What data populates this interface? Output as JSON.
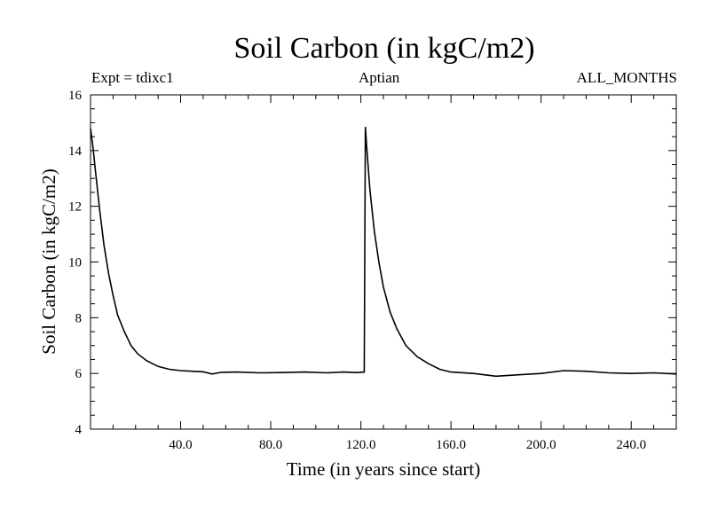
{
  "header": {
    "title": "Soil Carbon (in kgC/m2)",
    "left_label": "Expt = tdixc1",
    "center_label": "Aptian",
    "right_label": "ALL_MONTHS"
  },
  "chart_data": {
    "type": "line",
    "title": "Soil Carbon (in kgC/m2)",
    "xlabel": "Time (in years since start)",
    "ylabel": "Soil Carbon (in kgC/m2)",
    "xlim": [
      0,
      260
    ],
    "ylim": [
      4,
      16
    ],
    "x_ticks": [
      40,
      80,
      120,
      160,
      200,
      240
    ],
    "x_tick_labels": [
      "40.0",
      "80.0",
      "120.0",
      "160.0",
      "200.0",
      "240.0"
    ],
    "y_ticks": [
      4,
      6,
      8,
      10,
      12,
      14,
      16
    ],
    "y_tick_labels": [
      "4",
      "6",
      "8",
      "10",
      "12",
      "14",
      "16"
    ],
    "grid": false,
    "series": [
      {
        "x": [
          0,
          1,
          2,
          4,
          6,
          8,
          10,
          12,
          15,
          18,
          21,
          25,
          30,
          35,
          40,
          45,
          50,
          54,
          58,
          65,
          75,
          85,
          95,
          105,
          112,
          118,
          121.5,
          122,
          122.5,
          124,
          126,
          128,
          130,
          133,
          136,
          140,
          145,
          150,
          155,
          160,
          170,
          180,
          190,
          200,
          210,
          220,
          230,
          240,
          250,
          260
        ],
        "y": [
          14.8,
          14.2,
          13.4,
          11.9,
          10.6,
          9.6,
          8.8,
          8.1,
          7.5,
          7.0,
          6.7,
          6.45,
          6.25,
          6.15,
          6.1,
          6.08,
          6.06,
          5.98,
          6.04,
          6.05,
          6.02,
          6.03,
          6.05,
          6.02,
          6.05,
          6.03,
          6.05,
          14.85,
          14.2,
          12.6,
          11.1,
          10.0,
          9.1,
          8.2,
          7.6,
          7.0,
          6.6,
          6.35,
          6.15,
          6.05,
          6.0,
          5.9,
          5.95,
          6.0,
          6.1,
          6.08,
          6.02,
          6.0,
          6.02,
          5.98
        ]
      }
    ]
  }
}
